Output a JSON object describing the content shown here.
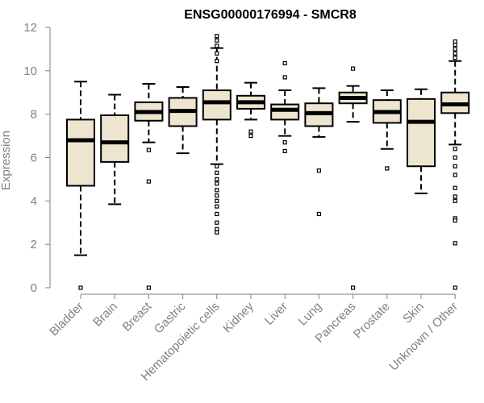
{
  "chart_data": {
    "type": "boxplot",
    "title": "ENSG00000176994 - SMCR8",
    "xlabel": "",
    "ylabel": "Expression",
    "ylim": [
      0,
      12
    ],
    "yticks": [
      0,
      2,
      4,
      6,
      8,
      10,
      12
    ],
    "box_color": "#ede5cf",
    "categories": [
      "Bladder",
      "Brain",
      "Breast",
      "Gastric",
      "Hematopoietic cells",
      "Kidney",
      "Liver",
      "Lung",
      "Pancreas",
      "Prostate",
      "Skin",
      "Unknown / Other"
    ],
    "boxes": [
      {
        "min": 1.5,
        "q1": 4.7,
        "median": 6.8,
        "q3": 7.75,
        "max": 9.5,
        "outliers": [
          0.0
        ]
      },
      {
        "min": 3.85,
        "q1": 5.8,
        "median": 6.7,
        "q3": 7.95,
        "max": 8.9,
        "outliers": []
      },
      {
        "min": 6.7,
        "q1": 7.7,
        "median": 8.1,
        "q3": 8.55,
        "max": 9.4,
        "outliers": [
          6.35,
          4.9,
          0.0
        ]
      },
      {
        "min": 6.2,
        "q1": 7.45,
        "median": 8.15,
        "q3": 8.75,
        "max": 9.25,
        "outliers": []
      },
      {
        "min": 5.7,
        "q1": 7.75,
        "median": 8.55,
        "q3": 9.1,
        "max": 11.05,
        "outliers": [
          11.6,
          11.4,
          11.15,
          10.8,
          10.45,
          5.6,
          5.3,
          5.0,
          4.8,
          4.5,
          4.25,
          4.0,
          3.75,
          3.4,
          3.0,
          2.7,
          2.55
        ]
      },
      {
        "min": 7.75,
        "q1": 8.25,
        "median": 8.55,
        "q3": 8.85,
        "max": 9.45,
        "outliers": [
          7.2,
          7.0
        ]
      },
      {
        "min": 7.0,
        "q1": 7.75,
        "median": 8.2,
        "q3": 8.45,
        "max": 9.1,
        "outliers": [
          10.35,
          9.7,
          6.7,
          6.3
        ]
      },
      {
        "min": 6.95,
        "q1": 7.45,
        "median": 8.05,
        "q3": 8.5,
        "max": 9.2,
        "outliers": [
          5.4,
          3.4
        ]
      },
      {
        "min": 7.65,
        "q1": 8.5,
        "median": 8.75,
        "q3": 9.0,
        "max": 9.3,
        "outliers": [
          10.1,
          0.0
        ]
      },
      {
        "min": 6.4,
        "q1": 7.6,
        "median": 8.1,
        "q3": 8.65,
        "max": 9.1,
        "outliers": [
          5.5
        ]
      },
      {
        "min": 4.35,
        "q1": 5.6,
        "median": 7.65,
        "q3": 8.7,
        "max": 9.15,
        "outliers": []
      },
      {
        "min": 6.6,
        "q1": 8.05,
        "median": 8.45,
        "q3": 9.0,
        "max": 10.45,
        "outliers": [
          11.35,
          11.2,
          11.0,
          10.8,
          10.6,
          6.4,
          6.0,
          5.6,
          5.2,
          4.6,
          4.2,
          4.0,
          3.2,
          3.1,
          2.05,
          0.0
        ]
      }
    ]
  }
}
